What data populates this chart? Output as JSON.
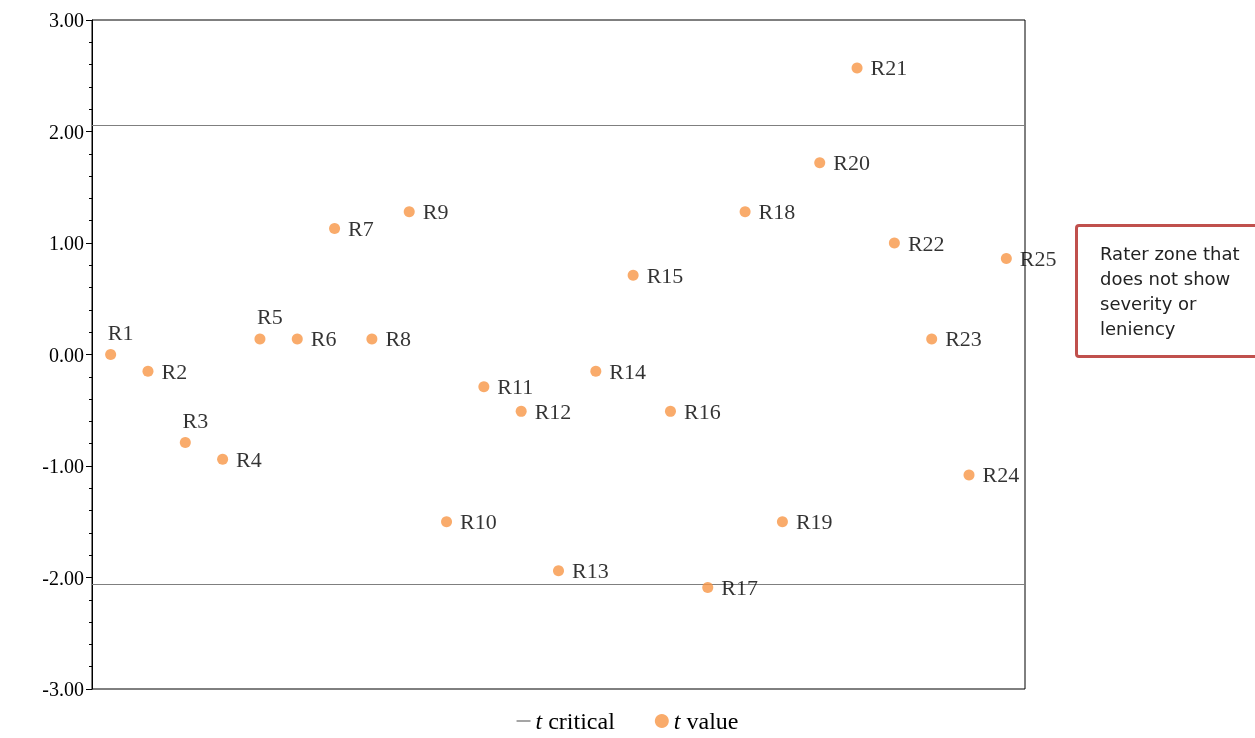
{
  "chart_data": {
    "type": "scatter",
    "categories": [
      null,
      null,
      null,
      null,
      null,
      null,
      null,
      null,
      null,
      null,
      null,
      null,
      null,
      null,
      null,
      null,
      null,
      null,
      null,
      null,
      null,
      null,
      null,
      null,
      null
    ],
    "series": [
      {
        "name": "t value",
        "color": "#f79646",
        "values": [
          0.0,
          -0.15,
          -0.79,
          -0.94,
          0.14,
          0.14,
          1.13,
          0.14,
          1.28,
          -1.5,
          -0.29,
          -0.51,
          -1.94,
          -0.15,
          0.71,
          -0.51,
          -2.09,
          1.28,
          -1.5,
          1.72,
          2.57,
          1.0,
          0.14,
          -1.08,
          0.86
        ],
        "value_labels": [
          "R1",
          "R2",
          "R3",
          "R4",
          "R5",
          "R6",
          "R7",
          "R8",
          "R9",
          "R10",
          "R11",
          "R12",
          "R13",
          "R14",
          "R15",
          "R16",
          "R17",
          "R18",
          "R19",
          "R20",
          "R21",
          "R22",
          "R23",
          "R24",
          "R25"
        ]
      }
    ],
    "ref_lines": [
      {
        "axis": "y",
        "value": 2.06,
        "label": "t critical",
        "color": "#7f7f7f"
      },
      {
        "axis": "y",
        "value": -2.06,
        "label": null,
        "color": "#7f7f7f"
      }
    ],
    "ylim": [
      -3,
      3
    ],
    "yticks": [
      {
        "value": -3,
        "label": "-3.00"
      },
      {
        "value": -2,
        "label": "-2.00"
      },
      {
        "value": -1,
        "label": "-1.00"
      },
      {
        "value": 0,
        "label": "0.00"
      },
      {
        "value": 1,
        "label": "1.00"
      },
      {
        "value": 2,
        "label": "2.00"
      },
      {
        "value": 3,
        "label": "3.00"
      }
    ],
    "tick_labels": "y",
    "grid": false,
    "legend": "bottom",
    "marker": "circle",
    "annotations": [
      "Rater zone that does not show severity or leniency"
    ]
  }
}
